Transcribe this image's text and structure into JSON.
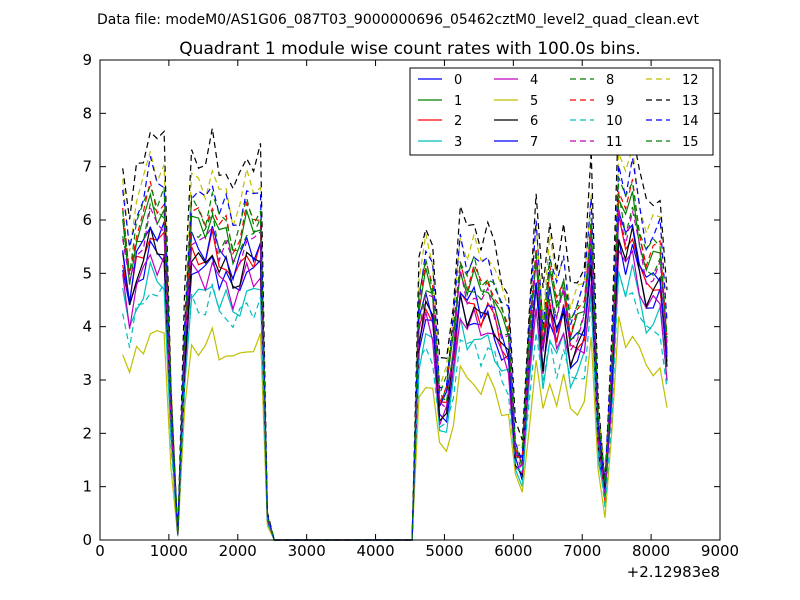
{
  "suptitle": "Data file: modeM0/AS1G06_087T03_9000000696_05462cztM0_level2_quad_clean.evt",
  "chart_data": {
    "type": "line",
    "title": "Quadrant 1 module wise count rates with 100.0s bins.",
    "xlabel": "",
    "ylabel": "",
    "xlim": [
      0,
      9000
    ],
    "ylim": [
      0,
      9
    ],
    "x_offset_label": "+2.12983e8",
    "xticks": [
      0,
      1000,
      2000,
      3000,
      4000,
      5000,
      6000,
      7000,
      8000,
      9000
    ],
    "xtick_labels": [
      "0",
      "1000",
      "2000",
      "3000",
      "4000",
      "5000",
      "6000",
      "7000",
      "8000",
      "9000"
    ],
    "yticks": [
      0,
      1,
      2,
      3,
      4,
      5,
      6,
      7,
      8,
      9
    ],
    "ytick_labels": [
      "0",
      "1",
      "2",
      "3",
      "4",
      "5",
      "6",
      "7",
      "8",
      "9"
    ],
    "legend_location": "upper-right",
    "legend_columns": 4,
    "x": [
      330,
      430,
      530,
      630,
      730,
      830,
      930,
      1030,
      1130,
      1230,
      1330,
      1430,
      1530,
      1630,
      1730,
      1830,
      1930,
      2030,
      2130,
      2230,
      2330,
      2430,
      2530,
      2630,
      2730,
      2830,
      2930,
      3030,
      3130,
      3230,
      3330,
      3430,
      3530,
      3630,
      3730,
      3830,
      3930,
      4030,
      4130,
      4230,
      4330,
      4430,
      4530,
      4630,
      4730,
      4830,
      4930,
      5030,
      5130,
      5230,
      5330,
      5430,
      5530,
      5630,
      5730,
      5830,
      5930,
      6030,
      6130,
      6230,
      6330,
      6430,
      6530,
      6630,
      6730,
      6830,
      6930,
      7030,
      7130,
      7230,
      7330,
      7430,
      7530,
      7630,
      7730,
      7830,
      7930,
      8030,
      8130,
      8230
    ],
    "series": [
      {
        "name": "0",
        "color": "#0000ff",
        "dash": "solid",
        "scale": 0.92
      },
      {
        "name": "1",
        "color": "#008000",
        "dash": "solid",
        "scale": 1.07
      },
      {
        "name": "2",
        "color": "#ff0000",
        "dash": "solid",
        "scale": 0.97
      },
      {
        "name": "3",
        "color": "#00bfbf",
        "dash": "solid",
        "scale": 0.84
      },
      {
        "name": "4",
        "color": "#bf00bf",
        "dash": "solid",
        "scale": 0.9
      },
      {
        "name": "5",
        "color": "#bfbf00",
        "dash": "solid",
        "scale": 0.66
      },
      {
        "name": "6",
        "color": "#000000",
        "dash": "solid",
        "scale": 0.95
      },
      {
        "name": "7",
        "color": "#0000ff",
        "dash": "solid",
        "scale": 1.0
      },
      {
        "name": "8",
        "color": "#008000",
        "dash": "dashed",
        "scale": 1.05
      },
      {
        "name": "9",
        "color": "#ff0000",
        "dash": "dashed",
        "scale": 1.1
      },
      {
        "name": "10",
        "color": "#00bfbf",
        "dash": "dashed",
        "scale": 0.8
      },
      {
        "name": "11",
        "color": "#bf00bf",
        "dash": "dashed",
        "scale": 1.02
      },
      {
        "name": "12",
        "color": "#bfbf00",
        "dash": "dashed",
        "scale": 1.21
      },
      {
        "name": "13",
        "color": "#000000",
        "dash": "dashed",
        "scale": 1.3
      },
      {
        "name": "14",
        "color": "#0000ff",
        "dash": "dashed",
        "scale": 1.17
      },
      {
        "name": "15",
        "color": "#008000",
        "dash": "dashed",
        "scale": 1.12
      }
    ],
    "base_profile": [
      5.5,
      4.6,
      5.3,
      5.5,
      6.0,
      5.7,
      5.8,
      2.3,
      0.1,
      3.5,
      5.6,
      5.5,
      5.4,
      5.8,
      5.3,
      5.4,
      5.0,
      5.2,
      5.6,
      5.4,
      5.6,
      0.4,
      0,
      0,
      0,
      0,
      0,
      0,
      0,
      0,
      0,
      0,
      0,
      0,
      0,
      0,
      0,
      0,
      0,
      0,
      0,
      0,
      0,
      4.0,
      4.6,
      4.3,
      2.5,
      2.6,
      3.5,
      4.8,
      4.4,
      4.6,
      4.3,
      4.5,
      4.2,
      3.8,
      3.6,
      1.6,
      1.4,
      3.4,
      5.0,
      3.5,
      4.6,
      4.0,
      4.5,
      3.6,
      3.8,
      4.0,
      5.5,
      2.0,
      0.9,
      3.0,
      6.1,
      5.6,
      6.0,
      5.3,
      4.8,
      4.9,
      5.0,
      3.5
    ]
  }
}
